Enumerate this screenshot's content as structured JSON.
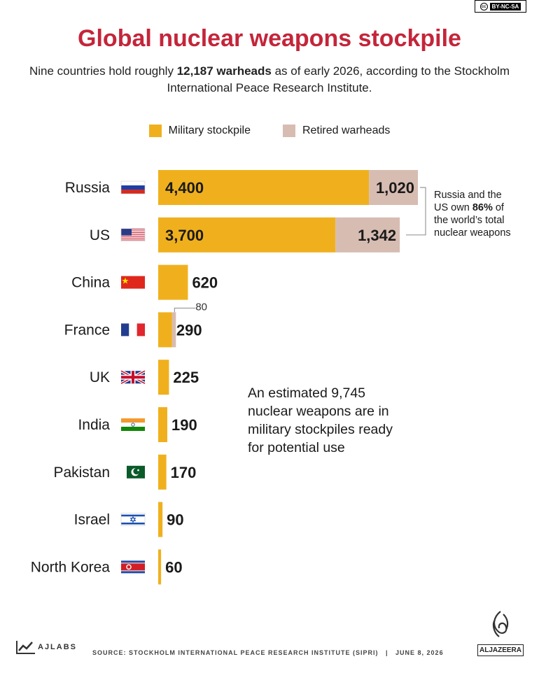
{
  "license": "BY-NC-SA",
  "title": "Global nuclear weapons stockpile",
  "subtitle": {
    "pre": "Nine countries hold roughly ",
    "bold": "12,187 warheads",
    "post": " as of early 2026, according to the Stockholm International Peace Research Institute."
  },
  "legend": {
    "military": "Military stockpile",
    "retired": "Retired warheads"
  },
  "colors": {
    "military": "#f0b01e",
    "retired": "#d7bcb2",
    "title": "#c4253a"
  },
  "chart_data": {
    "type": "bar",
    "orientation": "horizontal",
    "stacked": true,
    "categories": [
      "Russia",
      "US",
      "China",
      "France",
      "UK",
      "India",
      "Pakistan",
      "Israel",
      "North Korea"
    ],
    "series": [
      {
        "name": "Military stockpile",
        "values": [
          4400,
          3700,
          620,
          290,
          225,
          190,
          170,
          90,
          60
        ]
      },
      {
        "name": "Retired warheads",
        "values": [
          1020,
          1342,
          0,
          80,
          0,
          0,
          0,
          0,
          0
        ]
      }
    ],
    "value_labels": {
      "military": [
        "4,400",
        "3,700",
        "620",
        "290",
        "225",
        "190",
        "170",
        "90",
        "60"
      ],
      "retired": [
        "1,020",
        "1,342",
        "",
        "80",
        "",
        "",
        "",
        "",
        ""
      ]
    },
    "flags": [
      "russia-flag-icon",
      "us-flag-icon",
      "china-flag-icon",
      "france-flag-icon",
      "uk-flag-icon",
      "india-flag-icon",
      "pakistan-flag-icon",
      "israel-flag-icon",
      "north-korea-flag-icon"
    ],
    "annotations": {
      "russia_us": {
        "pre": "Russia and the US own ",
        "bold": "86%",
        "post": " of the world’s total nuclear weapons"
      },
      "stockpile": "An estimated 9,745 nuclear weapons are in military stockpiles ready for potential use"
    },
    "legend_position": "top-center"
  },
  "footer": {
    "brand": "AJLABS",
    "source": "SOURCE: STOCKHOLM INTERNATIONAL PEACE RESEARCH INSTITUTE (SIPRI)   |   JUNE 8, 2026",
    "logo_text": "ALJAZEERA"
  }
}
